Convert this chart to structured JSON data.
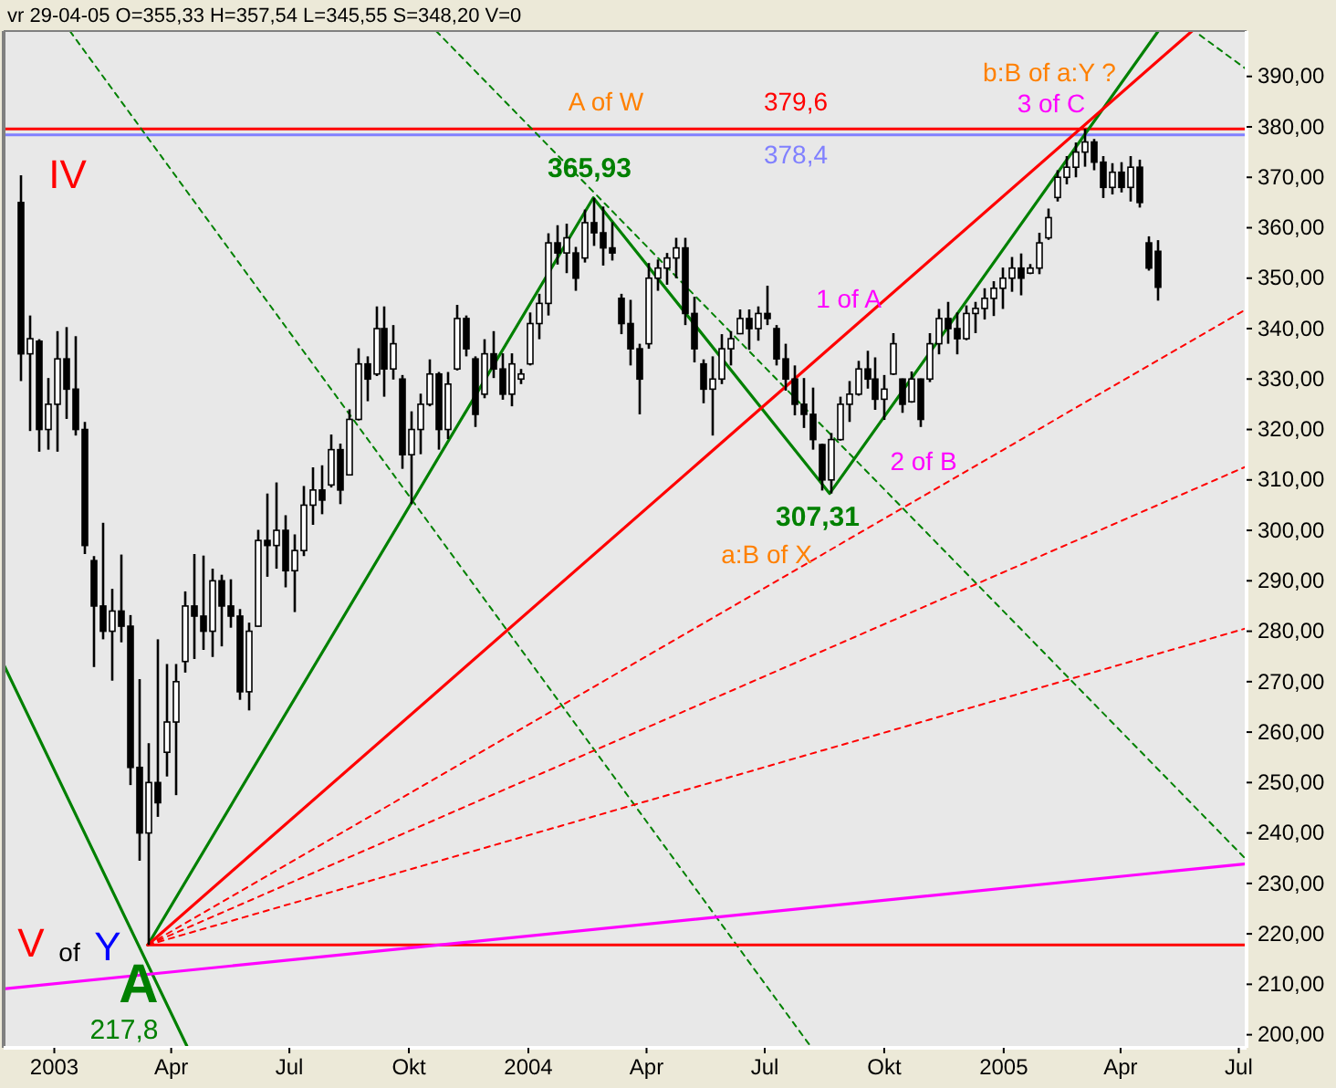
{
  "chart_data": {
    "type": "candlestick",
    "title": "vr 29-04-05  O=355,33 H=357,54 L=345,55 S=348,20 V=0",
    "color": "#000000",
    "x": [
      "2002-12-06",
      "2002-12-13",
      "2002-12-20",
      "2002-12-27",
      "2003-01-03",
      "2003-01-10",
      "2003-01-17",
      "2003-01-24",
      "2003-01-31",
      "2003-02-07",
      "2003-02-14",
      "2003-02-21",
      "2003-02-28",
      "2003-03-07",
      "2003-03-14",
      "2003-03-21",
      "2003-03-28",
      "2003-04-04",
      "2003-04-11",
      "2003-04-18",
      "2003-04-25",
      "2003-05-02",
      "2003-05-09",
      "2003-05-16",
      "2003-05-23",
      "2003-05-30",
      "2003-06-06",
      "2003-06-13",
      "2003-06-20",
      "2003-06-27",
      "2003-07-04",
      "2003-07-11",
      "2003-07-18",
      "2003-07-25",
      "2003-08-01",
      "2003-08-08",
      "2003-08-15",
      "2003-08-22",
      "2003-08-29",
      "2003-09-05",
      "2003-09-12",
      "2003-09-19",
      "2003-09-26",
      "2003-10-03",
      "2003-10-10",
      "2003-10-17",
      "2003-10-24",
      "2003-10-31",
      "2003-11-07",
      "2003-11-14",
      "2003-11-21",
      "2003-11-28",
      "2003-12-05",
      "2003-12-12",
      "2003-12-19",
      "2003-12-26",
      "2004-01-02",
      "2004-01-09",
      "2004-01-16",
      "2004-01-23",
      "2004-01-30",
      "2004-02-06",
      "2004-02-13",
      "2004-02-20",
      "2004-02-27",
      "2004-03-05",
      "2004-03-12",
      "2004-03-19",
      "2004-03-26",
      "2004-04-02",
      "2004-04-09",
      "2004-04-16",
      "2004-04-23",
      "2004-04-30",
      "2004-05-07",
      "2004-05-14",
      "2004-05-21",
      "2004-05-28",
      "2004-06-04",
      "2004-06-11",
      "2004-06-18",
      "2004-06-25",
      "2004-07-02",
      "2004-07-09",
      "2004-07-16",
      "2004-07-23",
      "2004-07-30",
      "2004-08-06",
      "2004-08-13",
      "2004-08-20",
      "2004-08-27",
      "2004-09-03",
      "2004-09-10",
      "2004-09-17",
      "2004-09-24",
      "2004-10-01",
      "2004-10-08",
      "2004-10-15",
      "2004-10-22",
      "2004-10-29",
      "2004-11-05",
      "2004-11-12",
      "2004-11-19",
      "2004-11-26",
      "2004-12-03",
      "2004-12-10",
      "2004-12-17",
      "2004-12-24",
      "2004-12-31",
      "2005-01-07",
      "2005-01-14",
      "2005-01-21",
      "2005-01-28",
      "2005-02-04",
      "2005-02-11",
      "2005-02-18",
      "2005-02-25",
      "2005-03-04",
      "2005-03-11",
      "2005-03-18",
      "2005-03-25",
      "2005-04-01",
      "2005-04-08",
      "2005-04-15",
      "2005-04-22",
      "2005-04-29"
    ],
    "ohlc": [
      [
        365,
        370.4,
        329.6,
        335
      ],
      [
        335,
        342.6,
        319.7,
        338
      ],
      [
        337.5,
        337.9,
        315.6,
        320
      ],
      [
        320,
        330.2,
        316,
        325
      ],
      [
        325,
        339.5,
        315.6,
        334
      ],
      [
        334,
        340.3,
        322.1,
        328
      ],
      [
        328,
        338.5,
        318.8,
        320
      ],
      [
        320,
        321.5,
        295.3,
        297
      ],
      [
        294,
        294.9,
        272.9,
        285
      ],
      [
        285,
        301.5,
        278.4,
        280
      ],
      [
        280,
        288.4,
        270.2,
        284
      ],
      [
        284,
        295.2,
        277.8,
        281
      ],
      [
        281,
        283.2,
        249.5,
        253
      ],
      [
        253,
        270.5,
        234.5,
        240
      ],
      [
        240,
        257.8,
        217.8,
        250
      ],
      [
        250,
        278.4,
        243.2,
        246
      ],
      [
        256,
        273.5,
        251.2,
        262
      ],
      [
        262,
        273.5,
        247.5,
        270
      ],
      [
        274,
        287.9,
        271.8,
        285
      ],
      [
        285,
        295.3,
        274.5,
        283
      ],
      [
        283,
        295,
        276.3,
        280
      ],
      [
        280,
        292.4,
        274.9,
        290
      ],
      [
        290,
        291.2,
        277,
        285
      ],
      [
        285,
        290.3,
        280.7,
        283
      ],
      [
        283,
        284.4,
        266.4,
        268
      ],
      [
        268,
        281.7,
        264.3,
        280
      ],
      [
        281,
        300.1,
        280.9,
        298
      ],
      [
        298,
        307.3,
        290.8,
        297
      ],
      [
        297,
        309.5,
        292.4,
        300
      ],
      [
        300,
        303,
        288.7,
        292
      ],
      [
        292,
        299.2,
        283.8,
        296
      ],
      [
        296,
        308.8,
        294.9,
        305
      ],
      [
        305,
        312.5,
        301.1,
        308
      ],
      [
        308,
        312.9,
        303.2,
        306
      ],
      [
        309,
        319,
        308.5,
        316
      ],
      [
        316,
        317.2,
        305.2,
        308
      ],
      [
        311,
        324,
        311,
        322
      ],
      [
        322,
        336.1,
        321.8,
        333
      ],
      [
        333,
        334.5,
        325.6,
        330
      ],
      [
        331,
        344.4,
        330.6,
        340
      ],
      [
        340,
        344.4,
        326.5,
        332
      ],
      [
        332,
        340.7,
        329.9,
        337
      ],
      [
        330,
        330.8,
        312.2,
        315
      ],
      [
        315,
        323.6,
        305.2,
        320
      ],
      [
        320,
        327.1,
        315.1,
        325
      ],
      [
        325,
        333.9,
        324.6,
        331
      ],
      [
        331,
        331.4,
        316,
        320
      ],
      [
        320,
        331.4,
        318.1,
        329
      ],
      [
        332,
        344.7,
        331.7,
        342
      ],
      [
        342,
        342.6,
        334.5,
        336
      ],
      [
        334,
        334.5,
        320.5,
        323
      ],
      [
        327,
        337.9,
        326.2,
        335
      ],
      [
        335,
        339.5,
        330.2,
        332
      ],
      [
        332,
        335.1,
        325.9,
        327
      ],
      [
        327,
        335.1,
        324.6,
        333
      ],
      [
        330,
        332,
        329,
        331
      ],
      [
        333,
        343.2,
        332.7,
        341
      ],
      [
        341,
        346.9,
        337.9,
        345
      ],
      [
        345,
        358.9,
        342.6,
        357
      ],
      [
        357,
        360.5,
        352.7,
        355
      ],
      [
        355,
        360.8,
        351,
        358
      ],
      [
        355,
        356.2,
        347.5,
        350
      ],
      [
        354,
        363.6,
        353.1,
        361
      ],
      [
        361,
        365.93,
        356.4,
        359
      ],
      [
        359,
        364.2,
        352.5,
        356
      ],
      [
        356,
        361.1,
        353.5,
        355
      ],
      [
        346,
        346.9,
        338.9,
        341
      ],
      [
        341,
        345.7,
        332.7,
        336
      ],
      [
        336,
        337,
        323,
        330
      ],
      [
        337,
        353,
        336,
        350
      ],
      [
        350,
        353.7,
        347.5,
        352
      ],
      [
        352,
        355,
        348.7,
        354
      ],
      [
        354,
        358,
        350,
        356
      ],
      [
        356,
        358,
        340.7,
        343
      ],
      [
        343,
        346.3,
        333.3,
        336
      ],
      [
        333,
        333.9,
        325.2,
        328
      ],
      [
        328,
        334.5,
        318.8,
        330
      ],
      [
        330,
        338.9,
        329,
        336
      ],
      [
        336,
        339.5,
        332.7,
        338
      ],
      [
        339,
        343.8,
        338.9,
        342
      ],
      [
        342,
        343.8,
        335.8,
        340
      ],
      [
        340,
        344.4,
        337.6,
        343
      ],
      [
        343,
        348.5,
        340.7,
        342
      ],
      [
        340,
        340.7,
        332.7,
        334
      ],
      [
        334,
        337,
        327.7,
        330
      ],
      [
        330,
        332.7,
        322.8,
        325
      ],
      [
        325,
        330.2,
        320.3,
        323
      ],
      [
        323,
        328.3,
        316,
        318
      ],
      [
        317,
        317.2,
        307.9,
        310
      ],
      [
        310,
        319.3,
        307.31,
        318
      ],
      [
        318,
        326.5,
        317.8,
        325
      ],
      [
        325,
        329.6,
        321.5,
        327
      ],
      [
        327,
        333.6,
        326.7,
        332
      ],
      [
        332,
        335.6,
        328.1,
        330
      ],
      [
        330,
        334.3,
        323.9,
        326
      ],
      [
        326,
        330.8,
        321.9,
        328
      ],
      [
        331,
        339.1,
        330.8,
        337
      ],
      [
        330,
        330.1,
        323.3,
        325
      ],
      [
        325.5,
        331.5,
        325.3,
        330
      ],
      [
        330,
        330.1,
        320.5,
        322
      ],
      [
        330,
        339.1,
        329.4,
        337
      ],
      [
        337,
        343.9,
        334.9,
        342
      ],
      [
        342,
        345.3,
        337,
        340
      ],
      [
        340,
        343.2,
        334.9,
        338
      ],
      [
        338,
        344.6,
        337.7,
        343
      ],
      [
        343,
        345.3,
        339.1,
        344
      ],
      [
        344,
        348,
        341.8,
        346
      ],
      [
        346,
        349.4,
        342.5,
        348
      ],
      [
        348,
        352.1,
        343.9,
        350
      ],
      [
        350,
        354.2,
        347.3,
        352
      ],
      [
        352,
        354.9,
        346.6,
        350
      ],
      [
        351,
        352.8,
        350.8,
        352
      ],
      [
        352,
        359,
        350.8,
        357
      ],
      [
        358,
        363.8,
        357.6,
        362
      ],
      [
        366,
        371.4,
        365.2,
        370
      ],
      [
        370,
        374.2,
        368.6,
        372
      ],
      [
        372,
        376.9,
        370,
        375
      ],
      [
        375,
        379.6,
        372.1,
        377
      ],
      [
        377,
        377.6,
        371.4,
        373
      ],
      [
        373,
        374.2,
        365.9,
        368
      ],
      [
        368,
        372.8,
        366.6,
        371
      ],
      [
        371,
        373,
        367,
        368
      ],
      [
        368,
        374.2,
        365.2,
        372
      ],
      [
        372,
        373.5,
        364,
        365
      ],
      [
        357,
        358.3,
        351.5,
        352
      ],
      [
        355.33,
        357.54,
        345.55,
        348.2
      ]
    ],
    "series": [
      {
        "type": "line",
        "color": "#008000",
        "line_style": "solid",
        "x": [
          "2003-03-14",
          "2004-02-20",
          "2004-08-20",
          "2005-04-30"
        ],
        "values": [
          217.8,
          365.93,
          307.31,
          399
        ]
      },
      {
        "type": "line",
        "color": "#008000",
        "line_style": "solid",
        "x": [
          "2002-11-23",
          "2003-04-13"
        ],
        "values": [
          273.4,
          197.8
        ]
      },
      {
        "type": "line",
        "color": "#008000",
        "line_style": "dashed",
        "x": [
          "2003-01-13",
          "2004-08-05"
        ],
        "values": [
          399,
          197.8
        ]
      },
      {
        "type": "line",
        "color": "#008000",
        "line_style": "dashed",
        "x": [
          "2003-10-22",
          "2005-07-05"
        ],
        "values": [
          399,
          235.2
        ]
      },
      {
        "type": "line",
        "color": "#008000",
        "line_style": "dashed",
        "x": [
          "2005-06-01",
          "2005-07-07"
        ],
        "values": [
          398.2,
          391.4
        ]
      },
      {
        "type": "line",
        "color": "#ff0000",
        "line_style": "solid",
        "x": [
          "2003-03-14",
          "2005-05-26"
        ],
        "values": [
          217.8,
          399
        ]
      },
      {
        "type": "line",
        "color": "#ff0000",
        "line_style": "dashed",
        "x": [
          "2003-03-14",
          "2005-07-07"
        ],
        "values": [
          217.8,
          343.9
        ]
      },
      {
        "type": "line",
        "color": "#ff0000",
        "line_style": "dashed",
        "x": [
          "2003-03-14",
          "2005-07-07"
        ],
        "values": [
          217.8,
          312.7
        ]
      },
      {
        "type": "line",
        "color": "#ff0000",
        "line_style": "dashed",
        "x": [
          "2003-03-14",
          "2005-07-07"
        ],
        "values": [
          217.8,
          280.6
        ]
      },
      {
        "type": "line",
        "color": "#ff0000",
        "line_style": "solid",
        "x": [
          "2003-03-14",
          "2005-07-07"
        ],
        "values": [
          217.8,
          217.8
        ]
      },
      {
        "type": "line",
        "color": "#ff00ff",
        "line_style": "solid",
        "x": [
          "2002-11-23",
          "2005-07-07"
        ],
        "values": [
          209.1,
          233.9
        ]
      }
    ],
    "ref_lines": [
      {
        "axis": "y",
        "value": 379.6,
        "color": "#ff0000"
      },
      {
        "axis": "y",
        "value": 378.4,
        "color": "#8080ff"
      }
    ],
    "annotations": [
      "IV",
      "V",
      "of",
      "Y",
      "A",
      "217,8",
      "365,93",
      "A of W",
      "379,6",
      "378,4",
      "307,31",
      "a:B of X",
      "1 of A",
      "2 of B",
      "b:B of a:Y ?",
      "3 of C"
    ],
    "xlim": [
      "2002-11-23",
      "2005-07-07"
    ],
    "xticks": [
      {
        "value": "2003-01-01",
        "label": "2003"
      },
      {
        "value": "2003-04-01",
        "label": "Apr"
      },
      {
        "value": "2003-07-01",
        "label": "Jul"
      },
      {
        "value": "2003-10-01",
        "label": "Okt"
      },
      {
        "value": "2004-01-01",
        "label": "2004"
      },
      {
        "value": "2004-04-01",
        "label": "Apr"
      },
      {
        "value": "2004-07-01",
        "label": "Jul"
      },
      {
        "value": "2004-10-01",
        "label": "Okt"
      },
      {
        "value": "2005-01-01",
        "label": "2005"
      },
      {
        "value": "2005-04-01",
        "label": "Apr"
      },
      {
        "value": "2005-07-01",
        "label": "Jul"
      }
    ],
    "ylim": [
      197.4,
      399
    ],
    "yticks": [
      {
        "value": 200,
        "label": "200,00"
      },
      {
        "value": 210,
        "label": "210,00"
      },
      {
        "value": 220,
        "label": "220,00"
      },
      {
        "value": 230,
        "label": "230,00"
      },
      {
        "value": 240,
        "label": "240,00"
      },
      {
        "value": 250,
        "label": "250,00"
      },
      {
        "value": 260,
        "label": "260,00"
      },
      {
        "value": 270,
        "label": "270,00"
      },
      {
        "value": 280,
        "label": "280,00"
      },
      {
        "value": 290,
        "label": "290,00"
      },
      {
        "value": 300,
        "label": "300,00"
      },
      {
        "value": 310,
        "label": "310,00"
      },
      {
        "value": 320,
        "label": "320,00"
      },
      {
        "value": 330,
        "label": "330,00"
      },
      {
        "value": 340,
        "label": "340,00"
      },
      {
        "value": 350,
        "label": "350,00"
      },
      {
        "value": 360,
        "label": "360,00"
      },
      {
        "value": 370,
        "label": "370,00"
      },
      {
        "value": 380,
        "label": "380,00"
      },
      {
        "value": 390,
        "label": "390,00"
      }
    ],
    "marker": "none"
  }
}
